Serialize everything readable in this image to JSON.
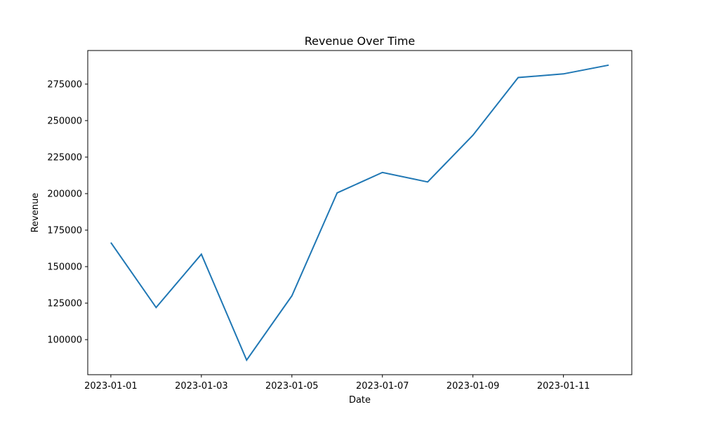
{
  "chart_data": {
    "type": "line",
    "title": "Revenue Over Time",
    "xlabel": "Date",
    "ylabel": "Revenue",
    "x": [
      "2023-01-01",
      "2023-01-02",
      "2023-01-03",
      "2023-01-04",
      "2023-01-05",
      "2023-01-06",
      "2023-01-07",
      "2023-01-08",
      "2023-01-09",
      "2023-01-10",
      "2023-01-11",
      "2023-01-12"
    ],
    "series": [
      {
        "values": [
          166500,
          122000,
          158500,
          86000,
          130000,
          200500,
          214500,
          208000,
          240000,
          279500,
          282000,
          288000
        ],
        "color": "#1f77b4"
      }
    ],
    "x_ticks": [
      "2023-01-01",
      "2023-01-03",
      "2023-01-05",
      "2023-01-07",
      "2023-01-09",
      "2023-01-11"
    ],
    "y_ticks": [
      100000,
      125000,
      150000,
      175000,
      200000,
      225000,
      250000,
      275000
    ],
    "xlim": [
      "2022-12-31T11:45",
      "2023-01-12T12:15"
    ],
    "ylim": [
      76000,
      298000
    ],
    "grid": false,
    "legend": "none"
  }
}
